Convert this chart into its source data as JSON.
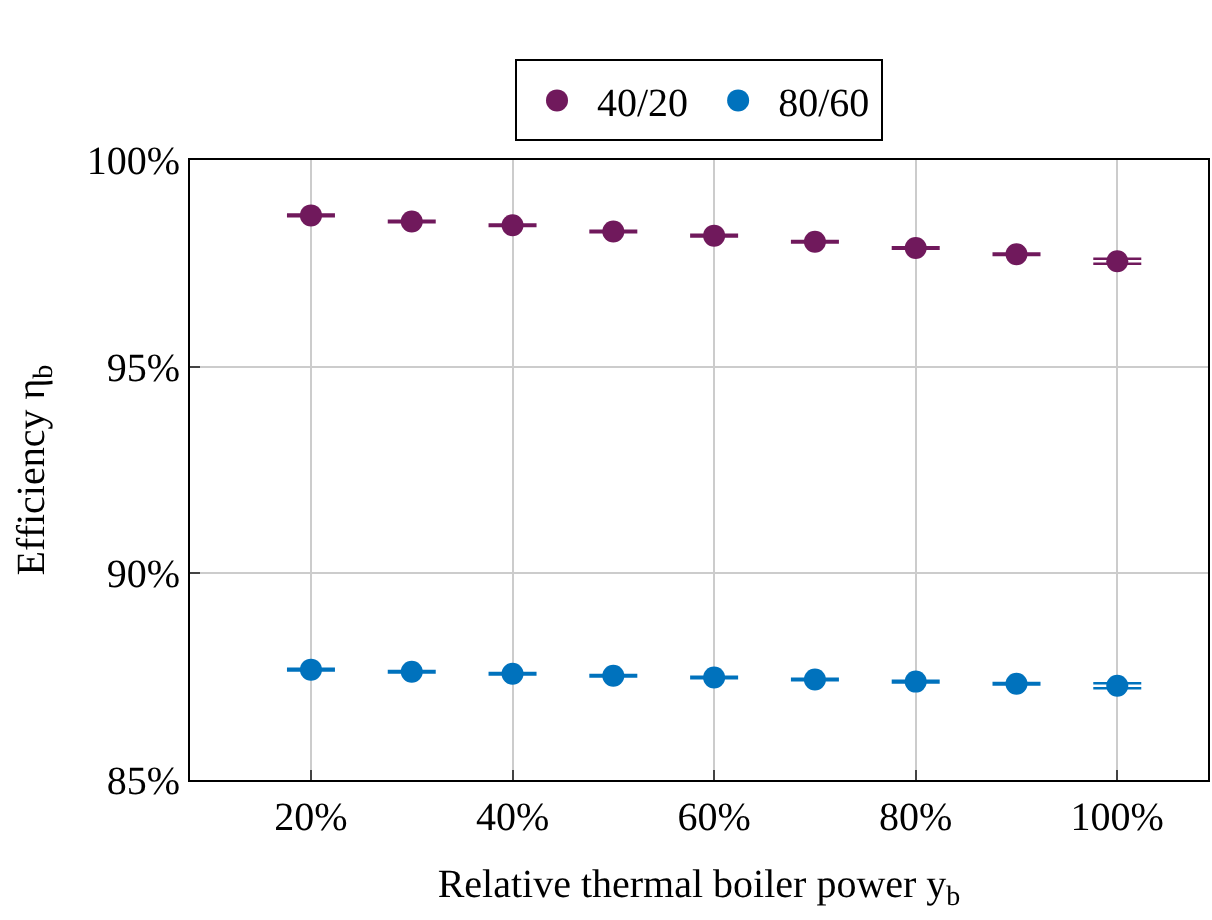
{
  "chart_data": {
    "type": "scatter",
    "xlabel": "Relative thermal boiler power y$_{b}$",
    "ylabel": "Efficiency η$_{b}$",
    "x": [
      20,
      30,
      40,
      50,
      60,
      70,
      80,
      90,
      100
    ],
    "series": [
      {
        "name": "40/20",
        "color": "#70195c",
        "values": [
          98.66,
          98.51,
          98.42,
          98.27,
          98.17,
          98.02,
          97.87,
          97.72,
          97.55
        ],
        "errors": [
          0.02,
          0.02,
          0.02,
          0.02,
          0.02,
          0.02,
          0.02,
          0.02,
          0.06
        ]
      },
      {
        "name": "80/60",
        "color": "#0072bd",
        "values": [
          87.67,
          87.62,
          87.57,
          87.52,
          87.48,
          87.43,
          87.38,
          87.33,
          87.28
        ],
        "errors": [
          0.02,
          0.02,
          0.02,
          0.02,
          0.02,
          0.02,
          0.02,
          0.02,
          0.06
        ]
      }
    ],
    "xlim": [
      8,
      109
    ],
    "xticks": [
      {
        "value": 20,
        "label": "20%"
      },
      {
        "value": 40,
        "label": "40%"
      },
      {
        "value": 60,
        "label": "60%"
      },
      {
        "value": 80,
        "label": "80%"
      },
      {
        "value": 100,
        "label": "100%"
      }
    ],
    "ylim": [
      85,
      100
    ],
    "yticks": [
      {
        "value": 85,
        "label": "85%"
      },
      {
        "value": 90,
        "label": "90%"
      },
      {
        "value": 95,
        "label": "95%"
      },
      {
        "value": 100,
        "label": "100%"
      }
    ],
    "grid": true,
    "legend": "top",
    "marker": "circle"
  }
}
